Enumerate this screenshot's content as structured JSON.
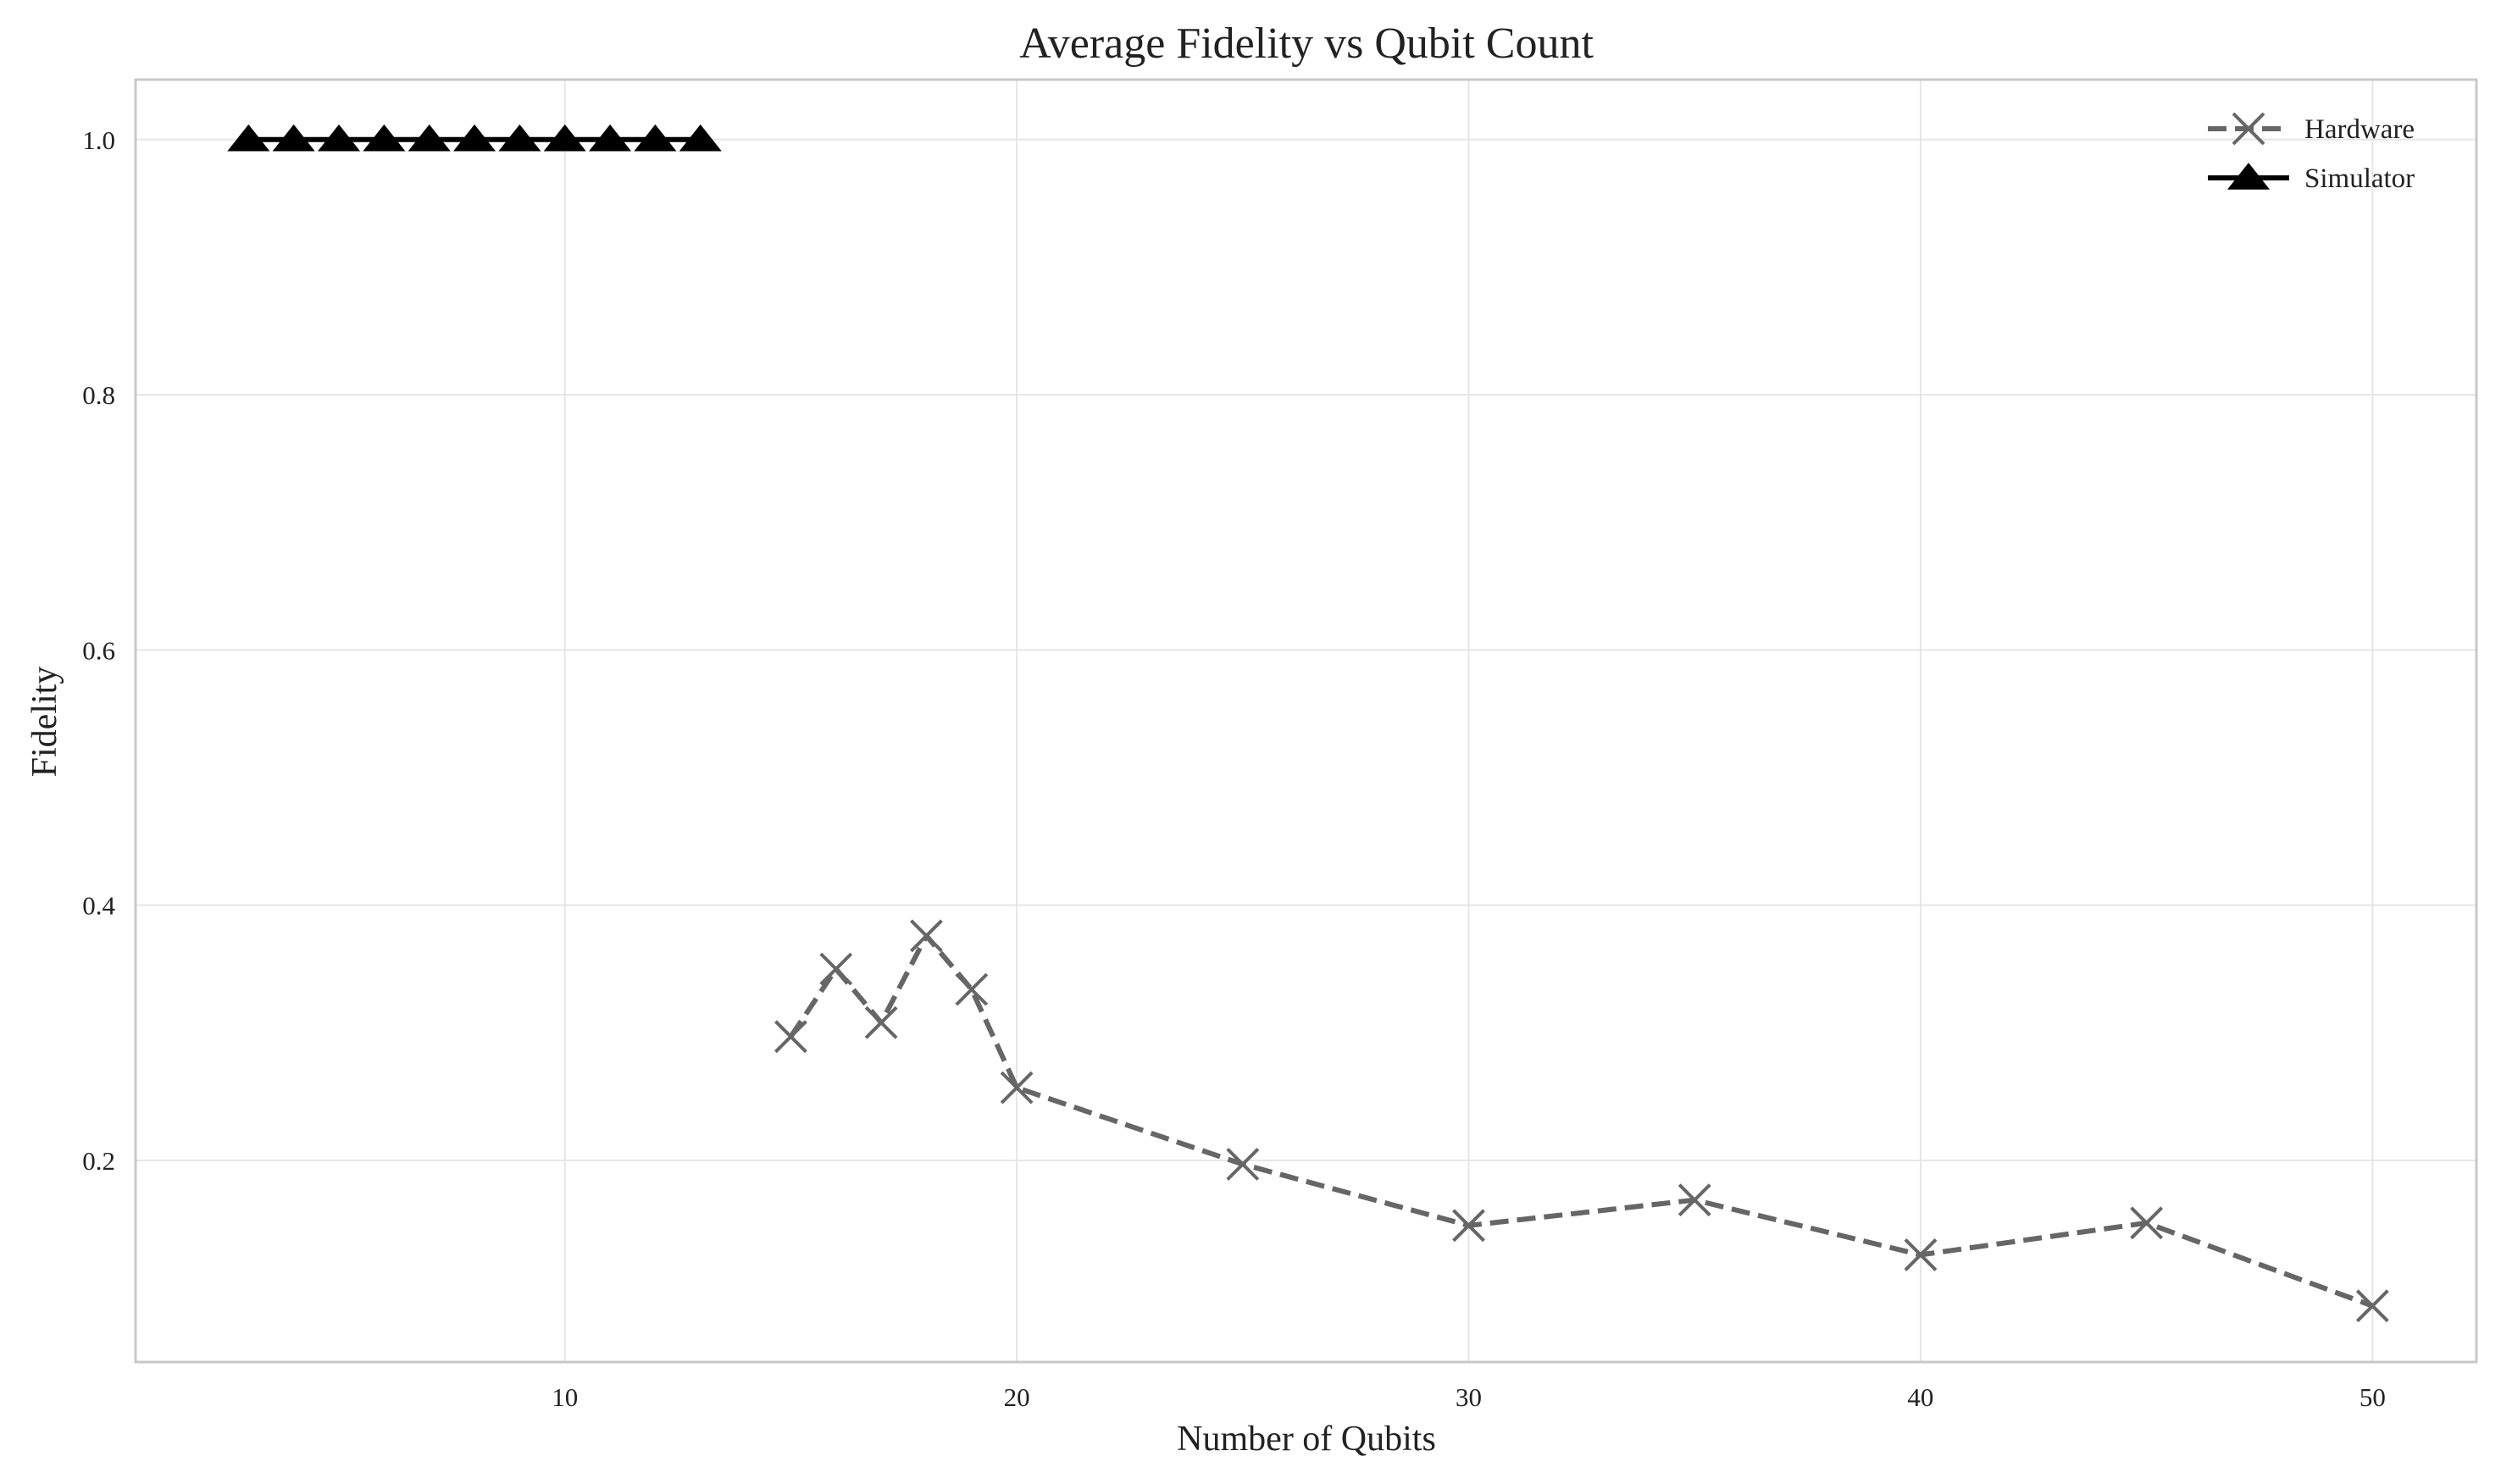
{
  "chart_data": {
    "type": "line",
    "title": "Average Fidelity vs Qubit Count",
    "xlabel": "Number of Qubits",
    "ylabel": "Fidelity",
    "xlim": [
      0.5,
      52.3
    ],
    "ylim": [
      0.042,
      1.047
    ],
    "xticks": [
      10,
      20,
      30,
      40,
      50
    ],
    "yticks": [
      0.2,
      0.4,
      0.6,
      0.8,
      1.0
    ],
    "xtick_labels": [
      "10",
      "20",
      "30",
      "40",
      "50"
    ],
    "ytick_labels": [
      "0.2",
      "0.4",
      "0.6",
      "0.8",
      "1.0"
    ],
    "grid": true,
    "legend_position": "top-right",
    "series": [
      {
        "name": "Hardware",
        "marker": "x",
        "line_style": "dashed",
        "color": "#666666",
        "x": [
          15,
          16,
          17,
          18,
          19,
          20,
          25,
          30,
          35,
          40,
          45,
          50
        ],
        "y": [
          0.297,
          0.35,
          0.308,
          0.376,
          0.334,
          0.257,
          0.197,
          0.149,
          0.169,
          0.126,
          0.151,
          0.086
        ]
      },
      {
        "name": "Simulator",
        "marker": "triangle",
        "line_style": "solid",
        "color": "#000000",
        "x": [
          3,
          4,
          5,
          6,
          7,
          8,
          9,
          10,
          11,
          12,
          13
        ],
        "y": [
          1.0,
          1.0,
          1.0,
          1.0,
          1.0,
          1.0,
          1.0,
          1.0,
          1.0,
          1.0,
          1.0
        ]
      }
    ]
  }
}
